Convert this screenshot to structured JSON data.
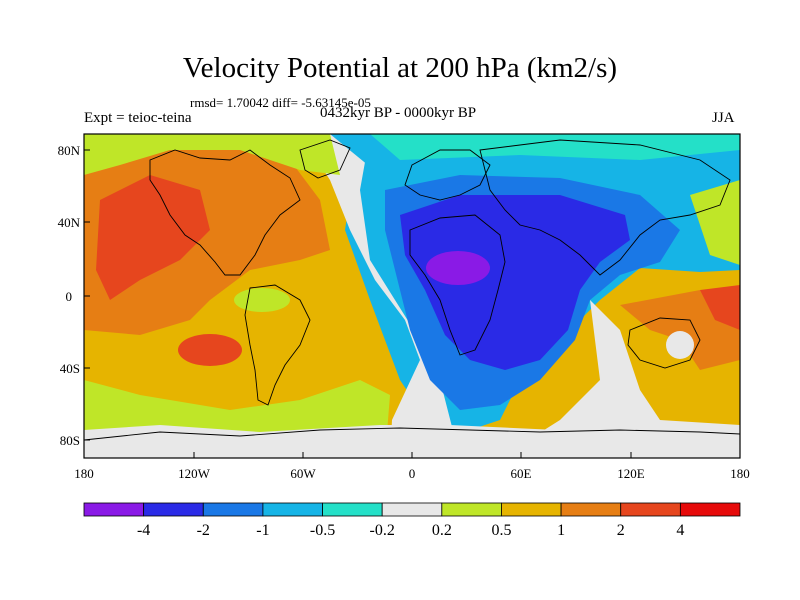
{
  "title": "Velocity Potential at 200 hPa (km2/s)",
  "stats_line": "rmsd= 1.70042 diff= -5.63145e-05",
  "experiment": "Expt = teioc-teina",
  "period": "0432kyr BP - 0000kyr BP",
  "season": "JJA",
  "lat_ticks": [
    "80N",
    "40N",
    "0",
    "40S",
    "80S"
  ],
  "lon_ticks": [
    "180",
    "120W",
    "60W",
    "0",
    "60E",
    "120E",
    "180"
  ],
  "colorbar": {
    "colors": [
      "#8a1ae6",
      "#2a2ae6",
      "#1a78e6",
      "#16b4e6",
      "#24e0c8",
      "#e8e8e8",
      "#bfe628",
      "#e6b400",
      "#e67e14",
      "#e6461e",
      "#e60a0a"
    ],
    "labels": [
      "-4",
      "-2",
      "-1",
      "-0.5",
      "-0.2",
      "0.2",
      "0.5",
      "1",
      "2",
      "4"
    ]
  },
  "palette": {
    "strong_negative": "#2a2ae6",
    "negative": "#1a78e6",
    "weak_negative": "#16b4e6",
    "near_zero_neg": "#24e0c8",
    "near_zero": "#e8e8e8",
    "weak_positive": "#bfe628",
    "positive": "#e6b400",
    "moderate_positive": "#e67e14",
    "strong_positive": "#e6461e",
    "extreme_negative": "#8a1ae6"
  }
}
